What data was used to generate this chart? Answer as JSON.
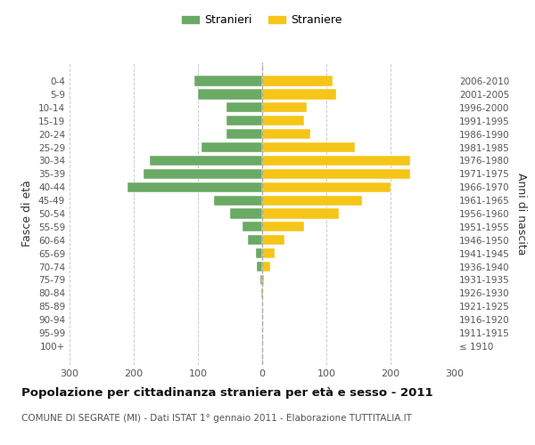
{
  "age_groups": [
    "100+",
    "95-99",
    "90-94",
    "85-89",
    "80-84",
    "75-79",
    "70-74",
    "65-69",
    "60-64",
    "55-59",
    "50-54",
    "45-49",
    "40-44",
    "35-39",
    "30-34",
    "25-29",
    "20-24",
    "15-19",
    "10-14",
    "5-9",
    "0-4"
  ],
  "birth_years": [
    "≤ 1910",
    "1911-1915",
    "1916-1920",
    "1921-1925",
    "1926-1930",
    "1931-1935",
    "1936-1940",
    "1941-1945",
    "1946-1950",
    "1951-1955",
    "1956-1960",
    "1961-1965",
    "1966-1970",
    "1971-1975",
    "1976-1980",
    "1981-1985",
    "1986-1990",
    "1991-1995",
    "1996-2000",
    "2001-2005",
    "2006-2010"
  ],
  "males": [
    0,
    0,
    0,
    0,
    2,
    3,
    8,
    10,
    22,
    30,
    50,
    75,
    210,
    185,
    175,
    95,
    55,
    55,
    55,
    100,
    105
  ],
  "females": [
    0,
    0,
    0,
    0,
    2,
    3,
    12,
    20,
    35,
    65,
    120,
    155,
    200,
    230,
    230,
    145,
    75,
    65,
    70,
    115,
    110
  ],
  "male_color": "#6aaa64",
  "female_color": "#f5c518",
  "male_label": "Stranieri",
  "female_label": "Straniere",
  "title": "Popolazione per cittadinanza straniera per età e sesso - 2011",
  "subtitle": "COMUNE DI SEGRATE (MI) - Dati ISTAT 1° gennaio 2011 - Elaborazione TUTTITALIA.IT",
  "ylabel_left": "Fasce di età",
  "ylabel_right": "Anni di nascita",
  "xlim": 300,
  "background_color": "#ffffff",
  "grid_color": "#cccccc"
}
